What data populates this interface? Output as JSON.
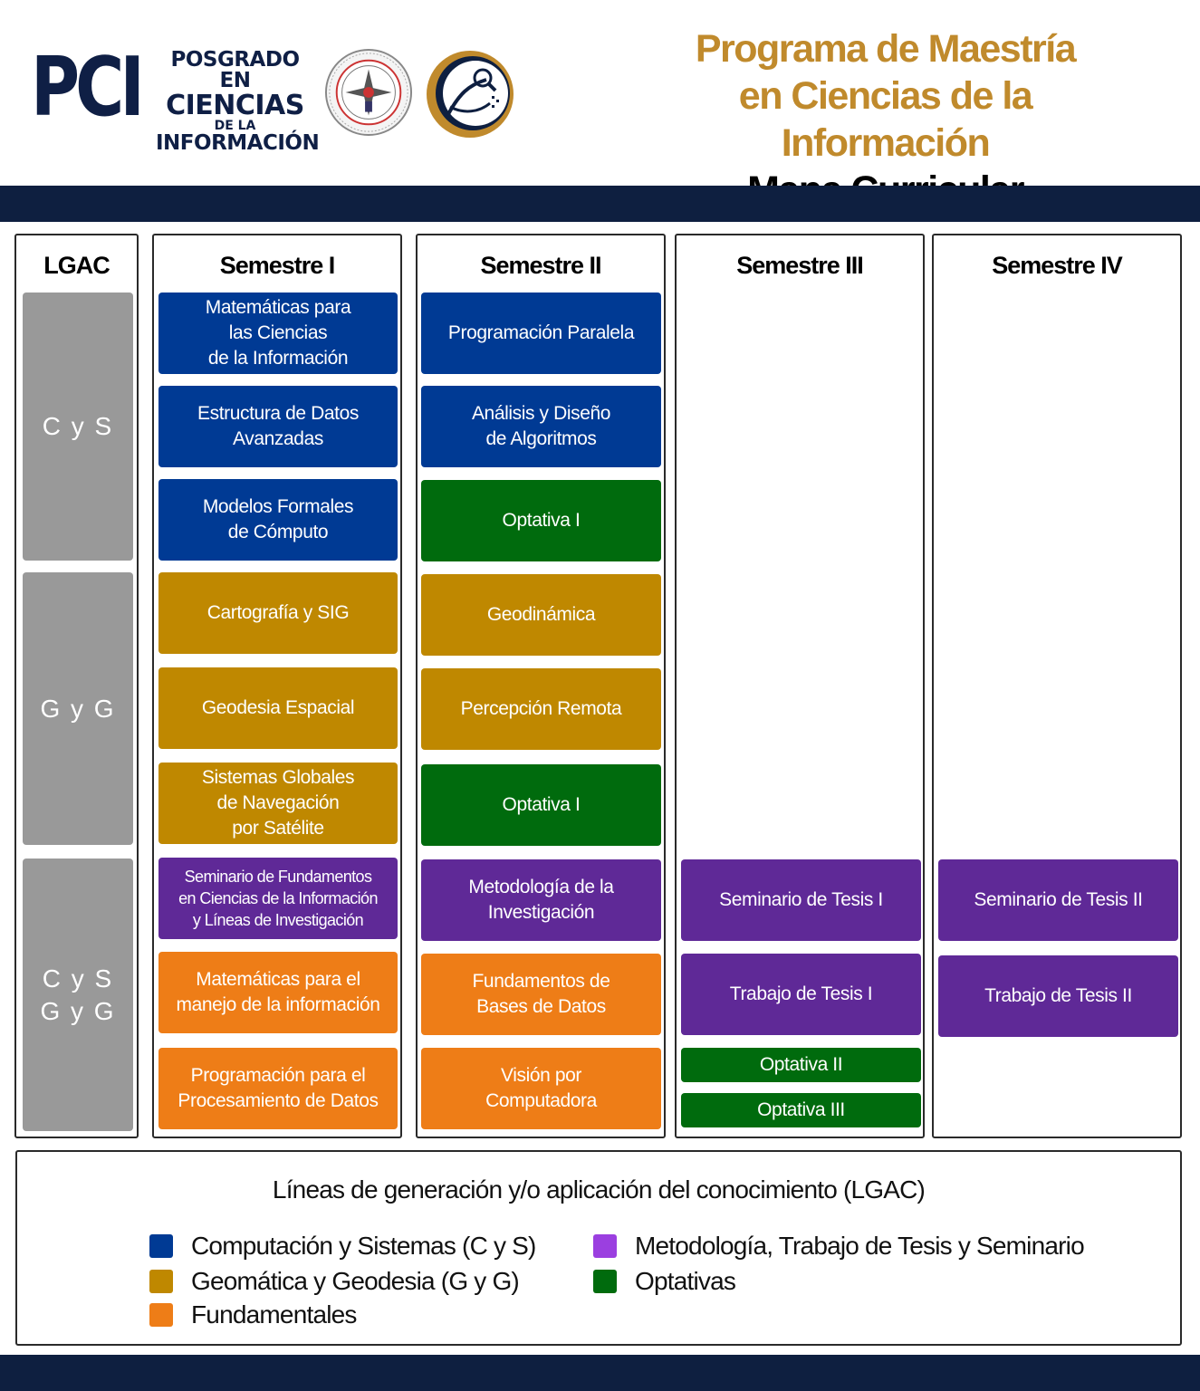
{
  "header": {
    "logo_acronym": "PCI",
    "logo_line1": "POSGRADO EN",
    "logo_line2": "CIENCIAS",
    "logo_line3": "DE LA",
    "logo_line4": "INFORMACIÓN",
    "title_line1": "Programa de Maestría",
    "title_line2": "en Ciencias de la Información",
    "subtitle": "Mapa Curricular"
  },
  "colors": {
    "navy": "#0e1f40",
    "title_gold": "#c08a2c",
    "cys_blue": "#003a94",
    "gyg_gold": "#bf8800",
    "optativas_green": "#006b0d",
    "metodologia_purple": "#5f2997",
    "fundamentales_orange": "#ee7d17",
    "lgac_gray": "#999999"
  },
  "lgac": {
    "header": "LGAC",
    "blocks": [
      {
        "label": "C y S"
      },
      {
        "label": "G y G"
      },
      {
        "label_line1": "C y S",
        "label_line2": "G y G"
      }
    ]
  },
  "semesters": [
    {
      "header": "Semestre I",
      "courses": [
        {
          "lines": [
            "Matemáticas para",
            "las Ciencias",
            "de la Información"
          ],
          "category": "blue"
        },
        {
          "lines": [
            "Estructura de Datos",
            "Avanzadas"
          ],
          "category": "blue"
        },
        {
          "lines": [
            "Modelos Formales",
            "de Cómputo"
          ],
          "category": "blue"
        },
        {
          "lines": [
            "Cartografía y SIG"
          ],
          "category": "gold"
        },
        {
          "lines": [
            "Geodesia Espacial"
          ],
          "category": "gold"
        },
        {
          "lines": [
            "Sistemas Globales",
            "de Navegación",
            "por Satélite"
          ],
          "category": "gold"
        },
        {
          "lines": [
            "Seminario de Fundamentos",
            "en Ciencias de la Información",
            "y Líneas de Investigación"
          ],
          "category": "purple"
        },
        {
          "lines": [
            "Matemáticas para el",
            "manejo de la información"
          ],
          "category": "orange"
        },
        {
          "lines": [
            "Programación para el",
            "Procesamiento de Datos"
          ],
          "category": "orange"
        }
      ]
    },
    {
      "header": "Semestre II",
      "courses": [
        {
          "lines": [
            "Programación Paralela"
          ],
          "category": "blue"
        },
        {
          "lines": [
            "Análisis y Diseño",
            "de Algoritmos"
          ],
          "category": "blue"
        },
        {
          "lines": [
            "Optativa I"
          ],
          "category": "green"
        },
        {
          "lines": [
            "Geodinámica"
          ],
          "category": "gold"
        },
        {
          "lines": [
            "Percepción Remota"
          ],
          "category": "gold"
        },
        {
          "lines": [
            "Optativa I"
          ],
          "category": "green"
        },
        {
          "lines": [
            "Metodología de la",
            "Investigación"
          ],
          "category": "purple"
        },
        {
          "lines": [
            "Fundamentos de",
            "Bases de Datos"
          ],
          "category": "orange"
        },
        {
          "lines": [
            "Visión por",
            "Computadora"
          ],
          "category": "orange"
        }
      ]
    },
    {
      "header": "Semestre III",
      "courses": [
        {
          "lines": [
            "Seminario de Tesis I"
          ],
          "category": "purple"
        },
        {
          "lines": [
            "Trabajo de Tesis I"
          ],
          "category": "purple"
        },
        {
          "lines": [
            "Optativa II"
          ],
          "category": "green"
        },
        {
          "lines": [
            "Optativa III"
          ],
          "category": "green"
        }
      ]
    },
    {
      "header": "Semestre IV",
      "courses": [
        {
          "lines": [
            "Seminario de Tesis II"
          ],
          "category": "purple"
        },
        {
          "lines": [
            "Trabajo de Tesis II"
          ],
          "category": "purple"
        }
      ]
    }
  ],
  "legend": {
    "title": "Líneas de generación y/o aplicación del conocimiento (LGAC)",
    "items": [
      {
        "label": "Computación y Sistemas (C y S)",
        "color": "#003a94"
      },
      {
        "label": "Geomática y Geodesia (G y G)",
        "color": "#bf8800"
      },
      {
        "label": "Fundamentales",
        "color": "#ee7d17"
      },
      {
        "label": "Metodología, Trabajo de Tesis y Seminario",
        "color": "#9b3fe0"
      },
      {
        "label": "Optativas",
        "color": "#006b0d"
      }
    ]
  }
}
